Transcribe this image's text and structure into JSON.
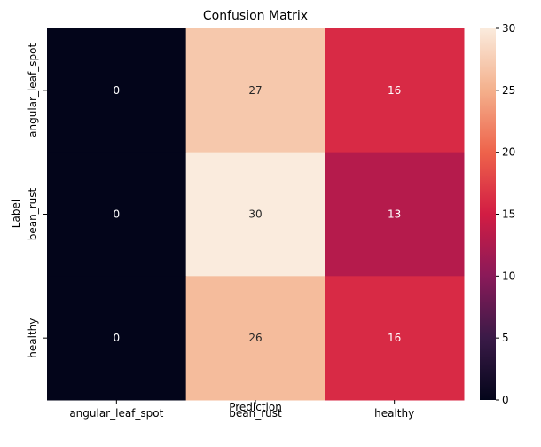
{
  "chart_data": {
    "type": "heatmap",
    "title": "Confusion Matrix",
    "xlabel": "Prediction",
    "ylabel": "Label",
    "x_categories": [
      "angular_leaf_spot",
      "bean_rust",
      "healthy"
    ],
    "y_categories": [
      "angular_leaf_spot",
      "bean_rust",
      "healthy"
    ],
    "values": [
      [
        0,
        27,
        16
      ],
      [
        0,
        30,
        13
      ],
      [
        0,
        26,
        16
      ]
    ],
    "colorbar": {
      "range": [
        0,
        30
      ],
      "ticks": [
        "0",
        "5",
        "10",
        "15",
        "20",
        "25",
        "30"
      ],
      "colormap": "rocket"
    }
  }
}
